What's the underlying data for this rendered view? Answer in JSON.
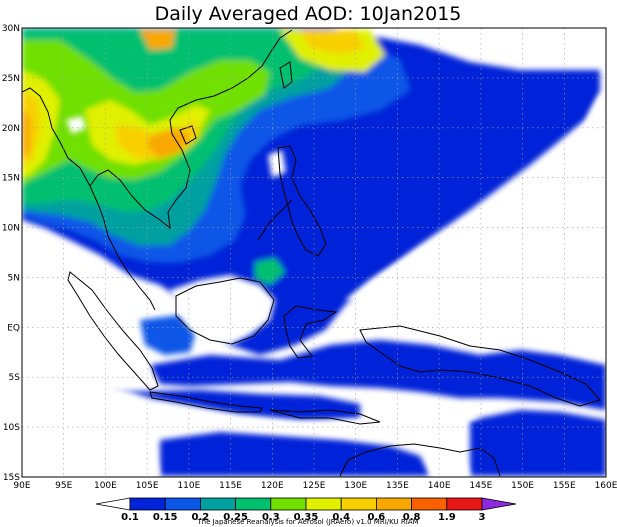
{
  "title": "Daily Averaged AOD: 10Jan2015",
  "credit": "The Japanese Reanalysis for Aerosol (JRAero) v1.0 MRI/KU RIAM",
  "map": {
    "lon_range": [
      90,
      160
    ],
    "lat_range": [
      -15,
      30
    ],
    "lon_ticks": [
      "90E",
      "95E",
      "100E",
      "105E",
      "110E",
      "115E",
      "120E",
      "125E",
      "130E",
      "135E",
      "140E",
      "145E",
      "150E",
      "155E",
      "160E"
    ],
    "lat_ticks": [
      "30N",
      "25N",
      "20N",
      "15N",
      "10N",
      "5N",
      "EQ",
      "5S",
      "10S",
      "15S"
    ],
    "gridlines": "dotted"
  },
  "colorbar": {
    "levels": [
      "0.1",
      "0.15",
      "0.2",
      "0.25",
      "0.3",
      "0.35",
      "0.4",
      "0.6",
      "0.8",
      "1.9",
      "3"
    ],
    "colors": [
      "#ffffff",
      "#0022d8",
      "#0a56e8",
      "#00a0a0",
      "#00c070",
      "#70e000",
      "#e0f000",
      "#f8d000",
      "#f8a800",
      "#f86000",
      "#e81818",
      "#8c28e0"
    ]
  }
}
